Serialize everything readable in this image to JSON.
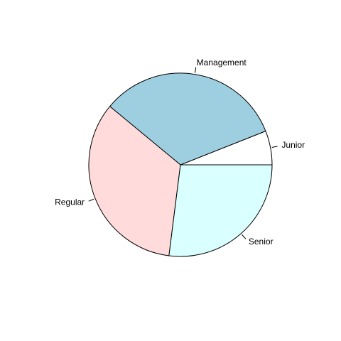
{
  "chart_data": {
    "type": "pie",
    "start_angle_deg": 0,
    "direction": "counterclockwise",
    "slices": [
      {
        "label": "Junior",
        "value": 6,
        "color": "#ffffff"
      },
      {
        "label": "Management",
        "value": 33,
        "color": "#9ecfe0"
      },
      {
        "label": "Regular",
        "value": 34,
        "color": "#ffdcdb"
      },
      {
        "label": "Senior",
        "value": 27,
        "color": "#d9ffff"
      }
    ]
  }
}
